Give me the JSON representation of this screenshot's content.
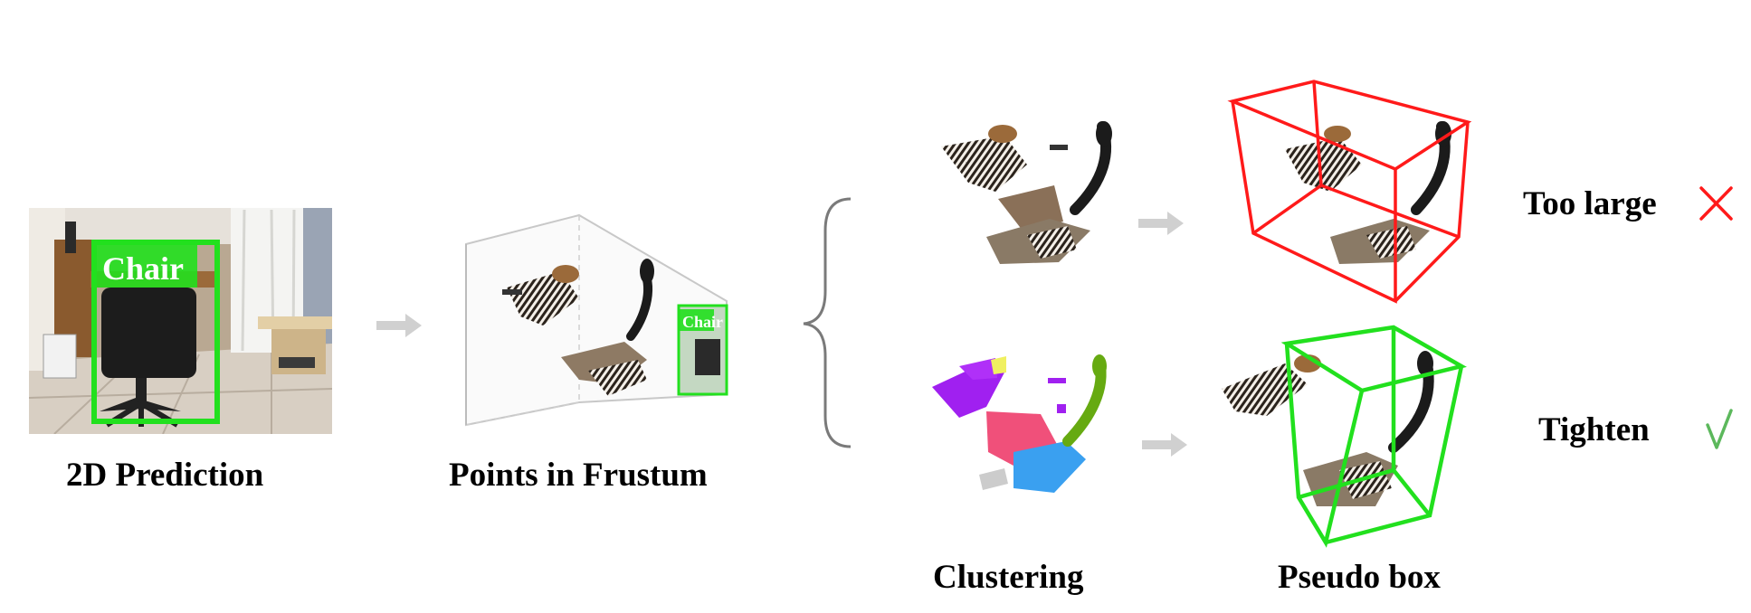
{
  "panels": {
    "prediction": {
      "caption": "2D Prediction",
      "box_label": "Chair"
    },
    "frustum": {
      "caption": "Points in Frustum",
      "box_label": "Chair"
    },
    "clustering": {
      "caption": "Clustering"
    },
    "pseudo_box": {
      "caption": "Pseudo box"
    }
  },
  "results": {
    "too_large": {
      "text": "Too large",
      "icon": "cross-icon"
    },
    "tighten": {
      "text": "Tighten",
      "icon": "check-icon"
    }
  },
  "colors": {
    "detection_green": "#22e01e",
    "error_red": "#ff1a1a",
    "check_green": "#5cb85c",
    "arrow_gray": "#d0d0d0",
    "brace_gray": "#7a7a7a",
    "cluster_purple": "#a020f0",
    "cluster_pink": "#f0507a",
    "cluster_blue": "#3aa0f0",
    "cluster_green": "#66aa11",
    "cluster_yellow": "#f0f060"
  }
}
